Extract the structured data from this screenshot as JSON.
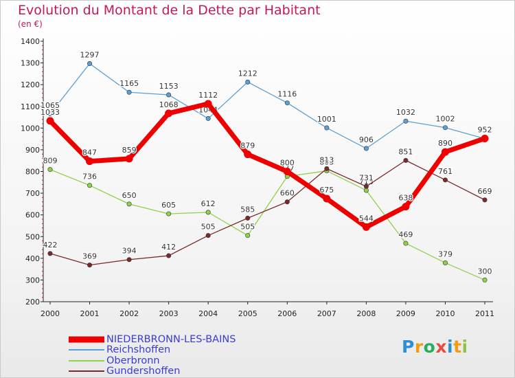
{
  "title": "Evolution du Montant de la Dette par Habitant",
  "subtitle": "(en €)",
  "logo": {
    "text": "Proxiti",
    "letters": [
      {
        "ch": "P",
        "color": "#2b8fd6"
      },
      {
        "ch": "r",
        "color": "#f39c12"
      },
      {
        "ch": "o",
        "color": "#27ae60"
      },
      {
        "ch": "x",
        "color": "#e74c3c"
      },
      {
        "ch": "i",
        "color": "#2b8fd6"
      },
      {
        "ch": "t",
        "color": "#f39c12"
      },
      {
        "ch": "i",
        "color": "#8bc34a"
      }
    ]
  },
  "chart_data": {
    "type": "line",
    "title": "Evolution du Montant de la Dette par Habitant",
    "subtitle": "(en €)",
    "x": [
      "2000",
      "2001",
      "2002",
      "2003",
      "2004",
      "2005",
      "2006",
      "2007",
      "2008",
      "2009",
      "2010",
      "2011"
    ],
    "ylim": [
      200,
      1400
    ],
    "yticks": [
      200,
      300,
      400,
      500,
      600,
      700,
      800,
      900,
      1000,
      1100,
      1200,
      1300,
      1400
    ],
    "grid": false,
    "legend_position": "bottom-left",
    "series": [
      {
        "name": "NIEDERBRONN-LES-BAINS",
        "color": "#ee0000",
        "emphasis": "thick",
        "values": [
          1033,
          847,
          859,
          1068,
          1112,
          879,
          800,
          675,
          544,
          638,
          890,
          952
        ]
      },
      {
        "name": "Reichshoffen",
        "color": "#5b9fd4",
        "values": [
          1065,
          1297,
          1165,
          1153,
          1044,
          1212,
          1116,
          1001,
          906,
          1032,
          1002,
          951
        ]
      },
      {
        "name": "Oberbronn",
        "color": "#8ed14a",
        "values": [
          809,
          736,
          650,
          605,
          612,
          505,
          777,
          803,
          713,
          469,
          379,
          300
        ]
      },
      {
        "name": "Gundershoffen",
        "color": "#7a2a2a",
        "values": [
          422,
          369,
          394,
          412,
          505,
          585,
          660,
          813,
          731,
          851,
          761,
          669
        ]
      }
    ]
  }
}
